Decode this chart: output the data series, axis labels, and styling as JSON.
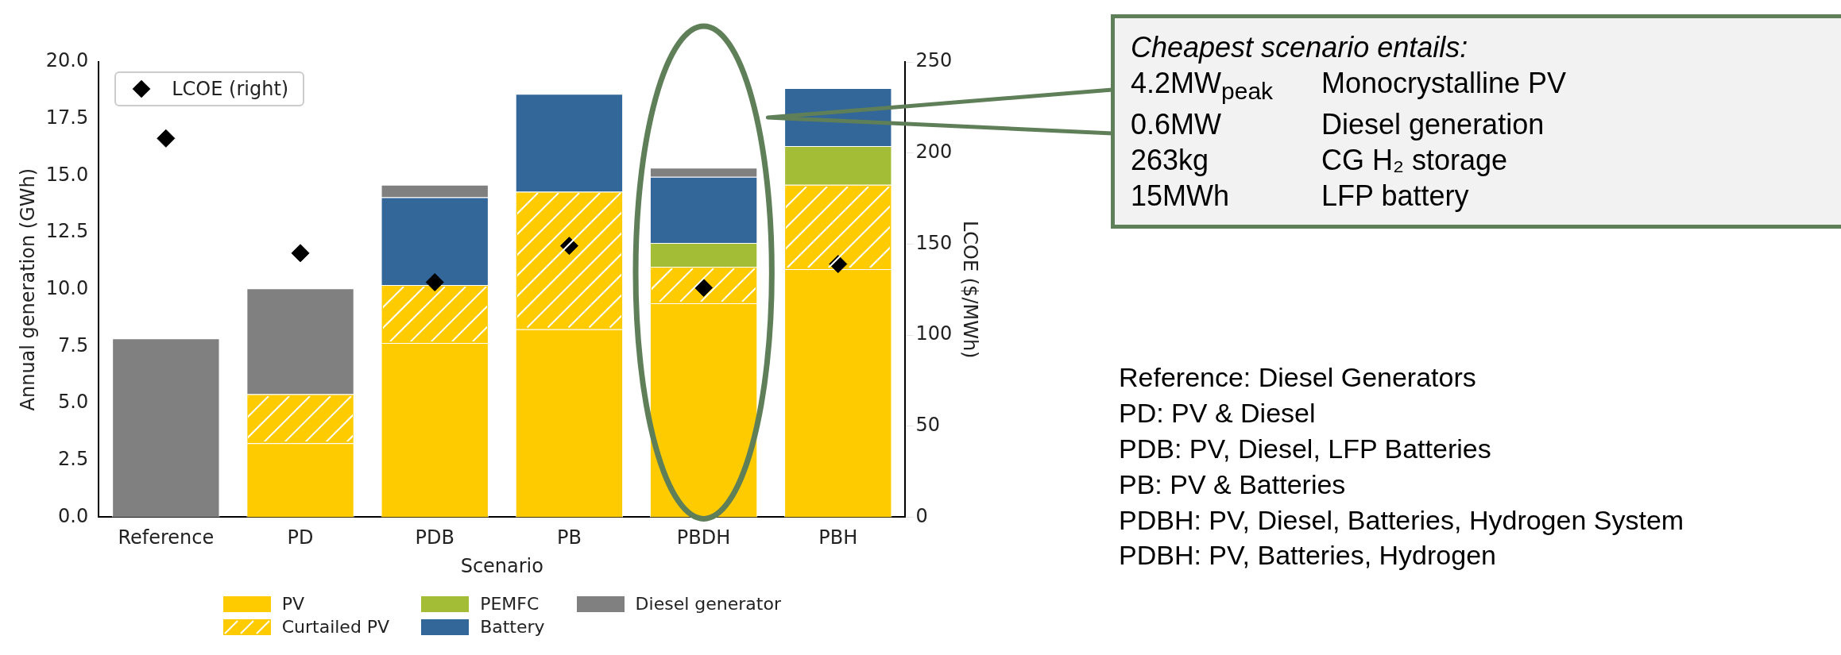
{
  "chart_data": {
    "type": "bar",
    "stacked": true,
    "xlabel": "Scenario",
    "ylabel": "Annual generation (GWh)",
    "y2label": "LCOE ($/MWh)",
    "categories": [
      "Reference",
      "PD",
      "PDB",
      "PB",
      "PBDH",
      "PBH"
    ],
    "ylim": [
      0,
      20
    ],
    "yticks": [
      {
        "value": 0,
        "label": "0.0"
      },
      2.5,
      {
        "value": 5,
        "label": "5.0"
      },
      7.5,
      {
        "value": 10,
        "label": "10.0"
      },
      12.5,
      {
        "value": 15,
        "label": "15.0"
      },
      17.5,
      {
        "value": 20,
        "label": "20.0"
      }
    ],
    "y2lim": [
      0,
      250
    ],
    "y2ticks": [
      0,
      50,
      100,
      150,
      200,
      250
    ],
    "series": [
      {
        "name": "PV",
        "color": "#fecb00",
        "values": [
          0,
          3.25,
          7.65,
          8.25,
          9.4,
          10.9
        ]
      },
      {
        "name": "Curtailed PV",
        "color": "#fecb00",
        "values": [
          0,
          2.15,
          2.55,
          6.05,
          1.6,
          3.7
        ]
      },
      {
        "name": "PEMFC",
        "color": "#a4bd36",
        "values": [
          0,
          0,
          0,
          0,
          1.05,
          1.7
        ]
      },
      {
        "name": "Battery",
        "color": "#336699",
        "values": [
          0,
          0,
          3.85,
          4.3,
          2.9,
          2.55
        ]
      },
      {
        "name": "Diesel generator",
        "color": "#808080",
        "values": [
          7.85,
          4.65,
          0.55,
          0,
          0.4,
          0
        ]
      },
      {
        "name": "LCOE (right)",
        "type": "scatter",
        "axis": "y2",
        "color": "#000000",
        "values": [
          208,
          145,
          129,
          149,
          126,
          139
        ]
      }
    ],
    "marker": "diamond",
    "grid": false,
    "legend": "bottom",
    "annotations": [
      "Cheapest scenario entails:",
      "4.2MW$_{peak}$",
      "Monocrystalline PV",
      "0.6MW",
      "Diesel generation",
      "263kg",
      "CG H₂ storage",
      "15MWh",
      "LFP battery",
      "Reference: Diesel Generators",
      "PD: PV & Diesel",
      "PDB: PV, Diesel, LFP Batteries",
      "PB: PV & Batteries",
      "PDBH: PV, Diesel, Batteries, Hydrogen System",
      "PDBH: PV, Batteries, Hydrogen"
    ]
  }
}
